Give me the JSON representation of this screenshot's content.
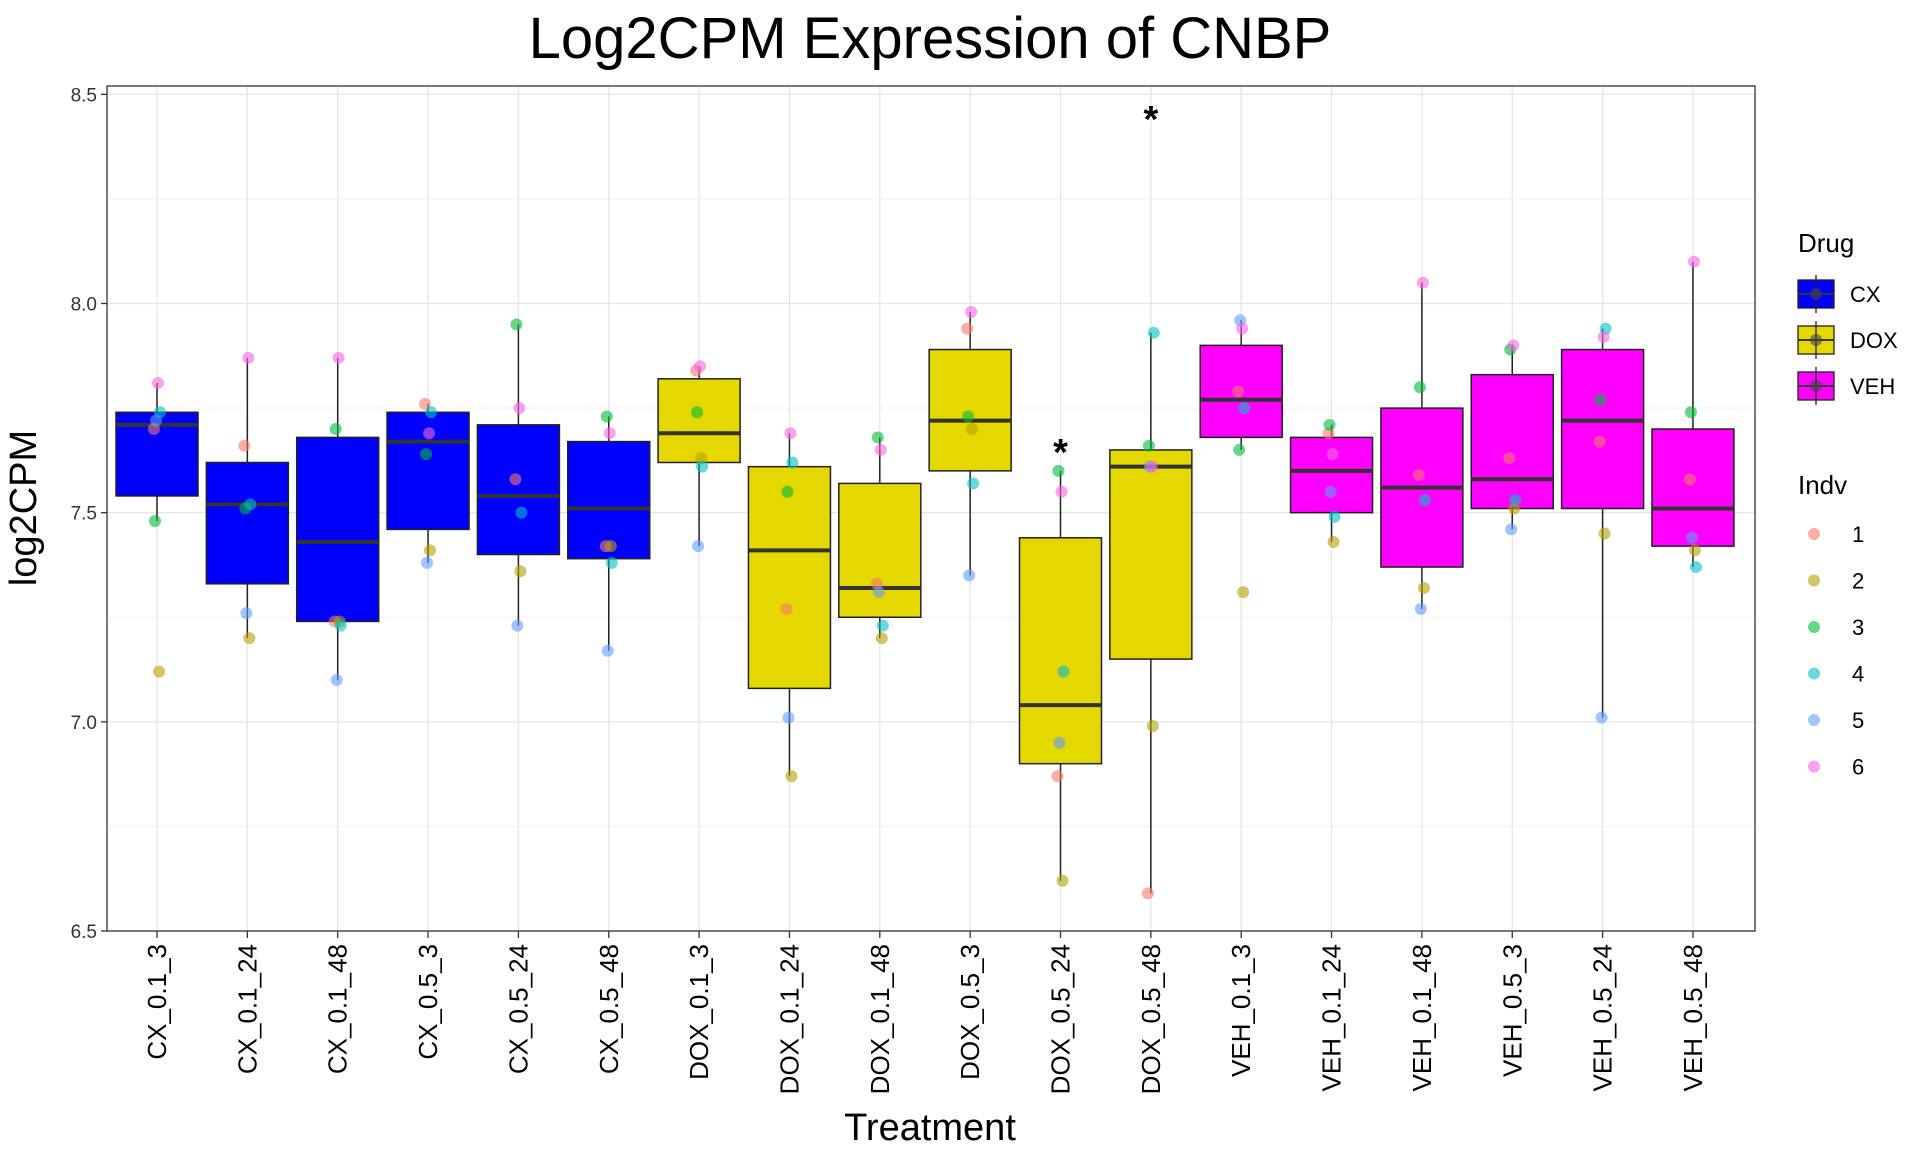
{
  "chart_data": {
    "type": "box",
    "title": "Log2CPM Expression of CNBP",
    "xlabel": "Treatment",
    "ylabel": "log2CPM",
    "ylim": [
      6.5,
      8.52
    ],
    "yticks": [
      "6.5",
      "7.0",
      "7.5",
      "8.0",
      "8.5"
    ],
    "grid": true,
    "legend_position": "right",
    "drug_colors": {
      "CX": "#0000FF",
      "DOX": "#E5D800",
      "VEH": "#FF00FF"
    },
    "indv_colors": {
      "1": "#F8766D",
      "2": "#B79F00",
      "3": "#00BA38",
      "4": "#00BFC4",
      "5": "#619CFF",
      "6": "#F564E3"
    },
    "categories": [
      {
        "name": "CX_0.1_3",
        "drug": "CX",
        "q1": 7.54,
        "median": 7.71,
        "q3": 7.74,
        "whisker_low": 7.48,
        "whisker_high": 7.81,
        "points": [
          7.7,
          7.12,
          7.48,
          7.74,
          7.72,
          7.81
        ],
        "star": false
      },
      {
        "name": "CX_0.1_24",
        "drug": "CX",
        "q1": 7.33,
        "median": 7.52,
        "q3": 7.62,
        "whisker_low": 7.2,
        "whisker_high": 7.87,
        "points": [
          7.66,
          7.2,
          7.51,
          7.52,
          7.26,
          7.87
        ],
        "star": false
      },
      {
        "name": "CX_0.1_48",
        "drug": "CX",
        "q1": 7.24,
        "median": 7.43,
        "q3": 7.68,
        "whisker_low": 7.1,
        "whisker_high": 7.87,
        "points": [
          7.24,
          7.24,
          7.7,
          7.23,
          7.1,
          7.87
        ],
        "star": false
      },
      {
        "name": "CX_0.5_3",
        "drug": "CX",
        "q1": 7.46,
        "median": 7.67,
        "q3": 7.74,
        "whisker_low": 7.38,
        "whisker_high": 7.76,
        "points": [
          7.76,
          7.41,
          7.64,
          7.74,
          7.38,
          7.69
        ],
        "star": false
      },
      {
        "name": "CX_0.5_24",
        "drug": "CX",
        "q1": 7.4,
        "median": 7.54,
        "q3": 7.71,
        "whisker_low": 7.23,
        "whisker_high": 7.95,
        "points": [
          7.58,
          7.36,
          7.95,
          7.5,
          7.23,
          7.75
        ],
        "star": false
      },
      {
        "name": "CX_0.5_48",
        "drug": "CX",
        "q1": 7.39,
        "median": 7.51,
        "q3": 7.67,
        "whisker_low": 7.17,
        "whisker_high": 7.73,
        "points": [
          7.42,
          7.42,
          7.73,
          7.38,
          7.17,
          7.69
        ],
        "star": false
      },
      {
        "name": "DOX_0.1_3",
        "drug": "DOX",
        "q1": 7.62,
        "median": 7.69,
        "q3": 7.82,
        "whisker_low": 7.42,
        "whisker_high": 7.85,
        "points": [
          7.84,
          7.63,
          7.74,
          7.61,
          7.42,
          7.85
        ],
        "star": false
      },
      {
        "name": "DOX_0.1_24",
        "drug": "DOX",
        "q1": 7.08,
        "median": 7.41,
        "q3": 7.61,
        "whisker_low": 6.87,
        "whisker_high": 7.69,
        "points": [
          7.27,
          6.87,
          7.55,
          7.62,
          7.01,
          7.69
        ],
        "star": false
      },
      {
        "name": "DOX_0.1_48",
        "drug": "DOX",
        "q1": 7.25,
        "median": 7.32,
        "q3": 7.57,
        "whisker_low": 7.2,
        "whisker_high": 7.68,
        "points": [
          7.33,
          7.2,
          7.68,
          7.23,
          7.31,
          7.65
        ],
        "star": false
      },
      {
        "name": "DOX_0.5_3",
        "drug": "DOX",
        "q1": 7.6,
        "median": 7.72,
        "q3": 7.89,
        "whisker_low": 7.35,
        "whisker_high": 7.98,
        "points": [
          7.94,
          7.7,
          7.73,
          7.57,
          7.35,
          7.98
        ],
        "star": false
      },
      {
        "name": "DOX_0.5_24",
        "drug": "DOX",
        "q1": 6.9,
        "median": 7.04,
        "q3": 7.44,
        "whisker_low": 6.62,
        "whisker_high": 7.6,
        "points": [
          6.87,
          6.62,
          7.6,
          7.12,
          6.95,
          7.55
        ],
        "star": true
      },
      {
        "name": "DOX_0.5_48",
        "drug": "DOX",
        "q1": 7.15,
        "median": 7.61,
        "q3": 7.65,
        "whisker_low": 6.59,
        "whisker_high": 7.93,
        "points": [
          6.59,
          6.99,
          7.66,
          7.93,
          7.61,
          7.61
        ],
        "star": true
      },
      {
        "name": "VEH_0.1_3",
        "drug": "VEH",
        "q1": 7.68,
        "median": 7.77,
        "q3": 7.9,
        "whisker_low": 7.65,
        "whisker_high": 7.96,
        "points": [
          7.79,
          7.31,
          7.65,
          7.75,
          7.96,
          7.94
        ],
        "star": false
      },
      {
        "name": "VEH_0.1_24",
        "drug": "VEH",
        "q1": 7.5,
        "median": 7.6,
        "q3": 7.68,
        "whisker_low": 7.43,
        "whisker_high": 7.71,
        "points": [
          7.69,
          7.43,
          7.71,
          7.49,
          7.55,
          7.64
        ],
        "star": false
      },
      {
        "name": "VEH_0.1_48",
        "drug": "VEH",
        "q1": 7.37,
        "median": 7.56,
        "q3": 7.75,
        "whisker_low": 7.27,
        "whisker_high": 8.05,
        "points": [
          7.59,
          7.32,
          7.8,
          7.53,
          7.27,
          8.05
        ],
        "star": false
      },
      {
        "name": "VEH_0.5_3",
        "drug": "VEH",
        "q1": 7.51,
        "median": 7.58,
        "q3": 7.83,
        "whisker_low": 7.46,
        "whisker_high": 7.9,
        "points": [
          7.63,
          7.51,
          7.89,
          7.53,
          7.46,
          7.9
        ],
        "star": false
      },
      {
        "name": "VEH_0.5_24",
        "drug": "VEH",
        "q1": 7.51,
        "median": 7.72,
        "q3": 7.89,
        "whisker_low": 7.01,
        "whisker_high": 7.94,
        "points": [
          7.67,
          7.45,
          7.77,
          7.94,
          7.01,
          7.92
        ],
        "star": false
      },
      {
        "name": "VEH_0.5_48",
        "drug": "VEH",
        "q1": 7.42,
        "median": 7.51,
        "q3": 7.7,
        "whisker_low": 7.37,
        "whisker_high": 8.1,
        "points": [
          7.58,
          7.41,
          7.74,
          7.37,
          7.44,
          8.1
        ],
        "star": false
      }
    ],
    "legend": {
      "drug_title": "Drug",
      "drugs": [
        "CX",
        "DOX",
        "VEH"
      ],
      "indv_title": "Indv",
      "indvs": [
        "1",
        "2",
        "3",
        "4",
        "5",
        "6"
      ]
    },
    "star_symbol": "*"
  }
}
